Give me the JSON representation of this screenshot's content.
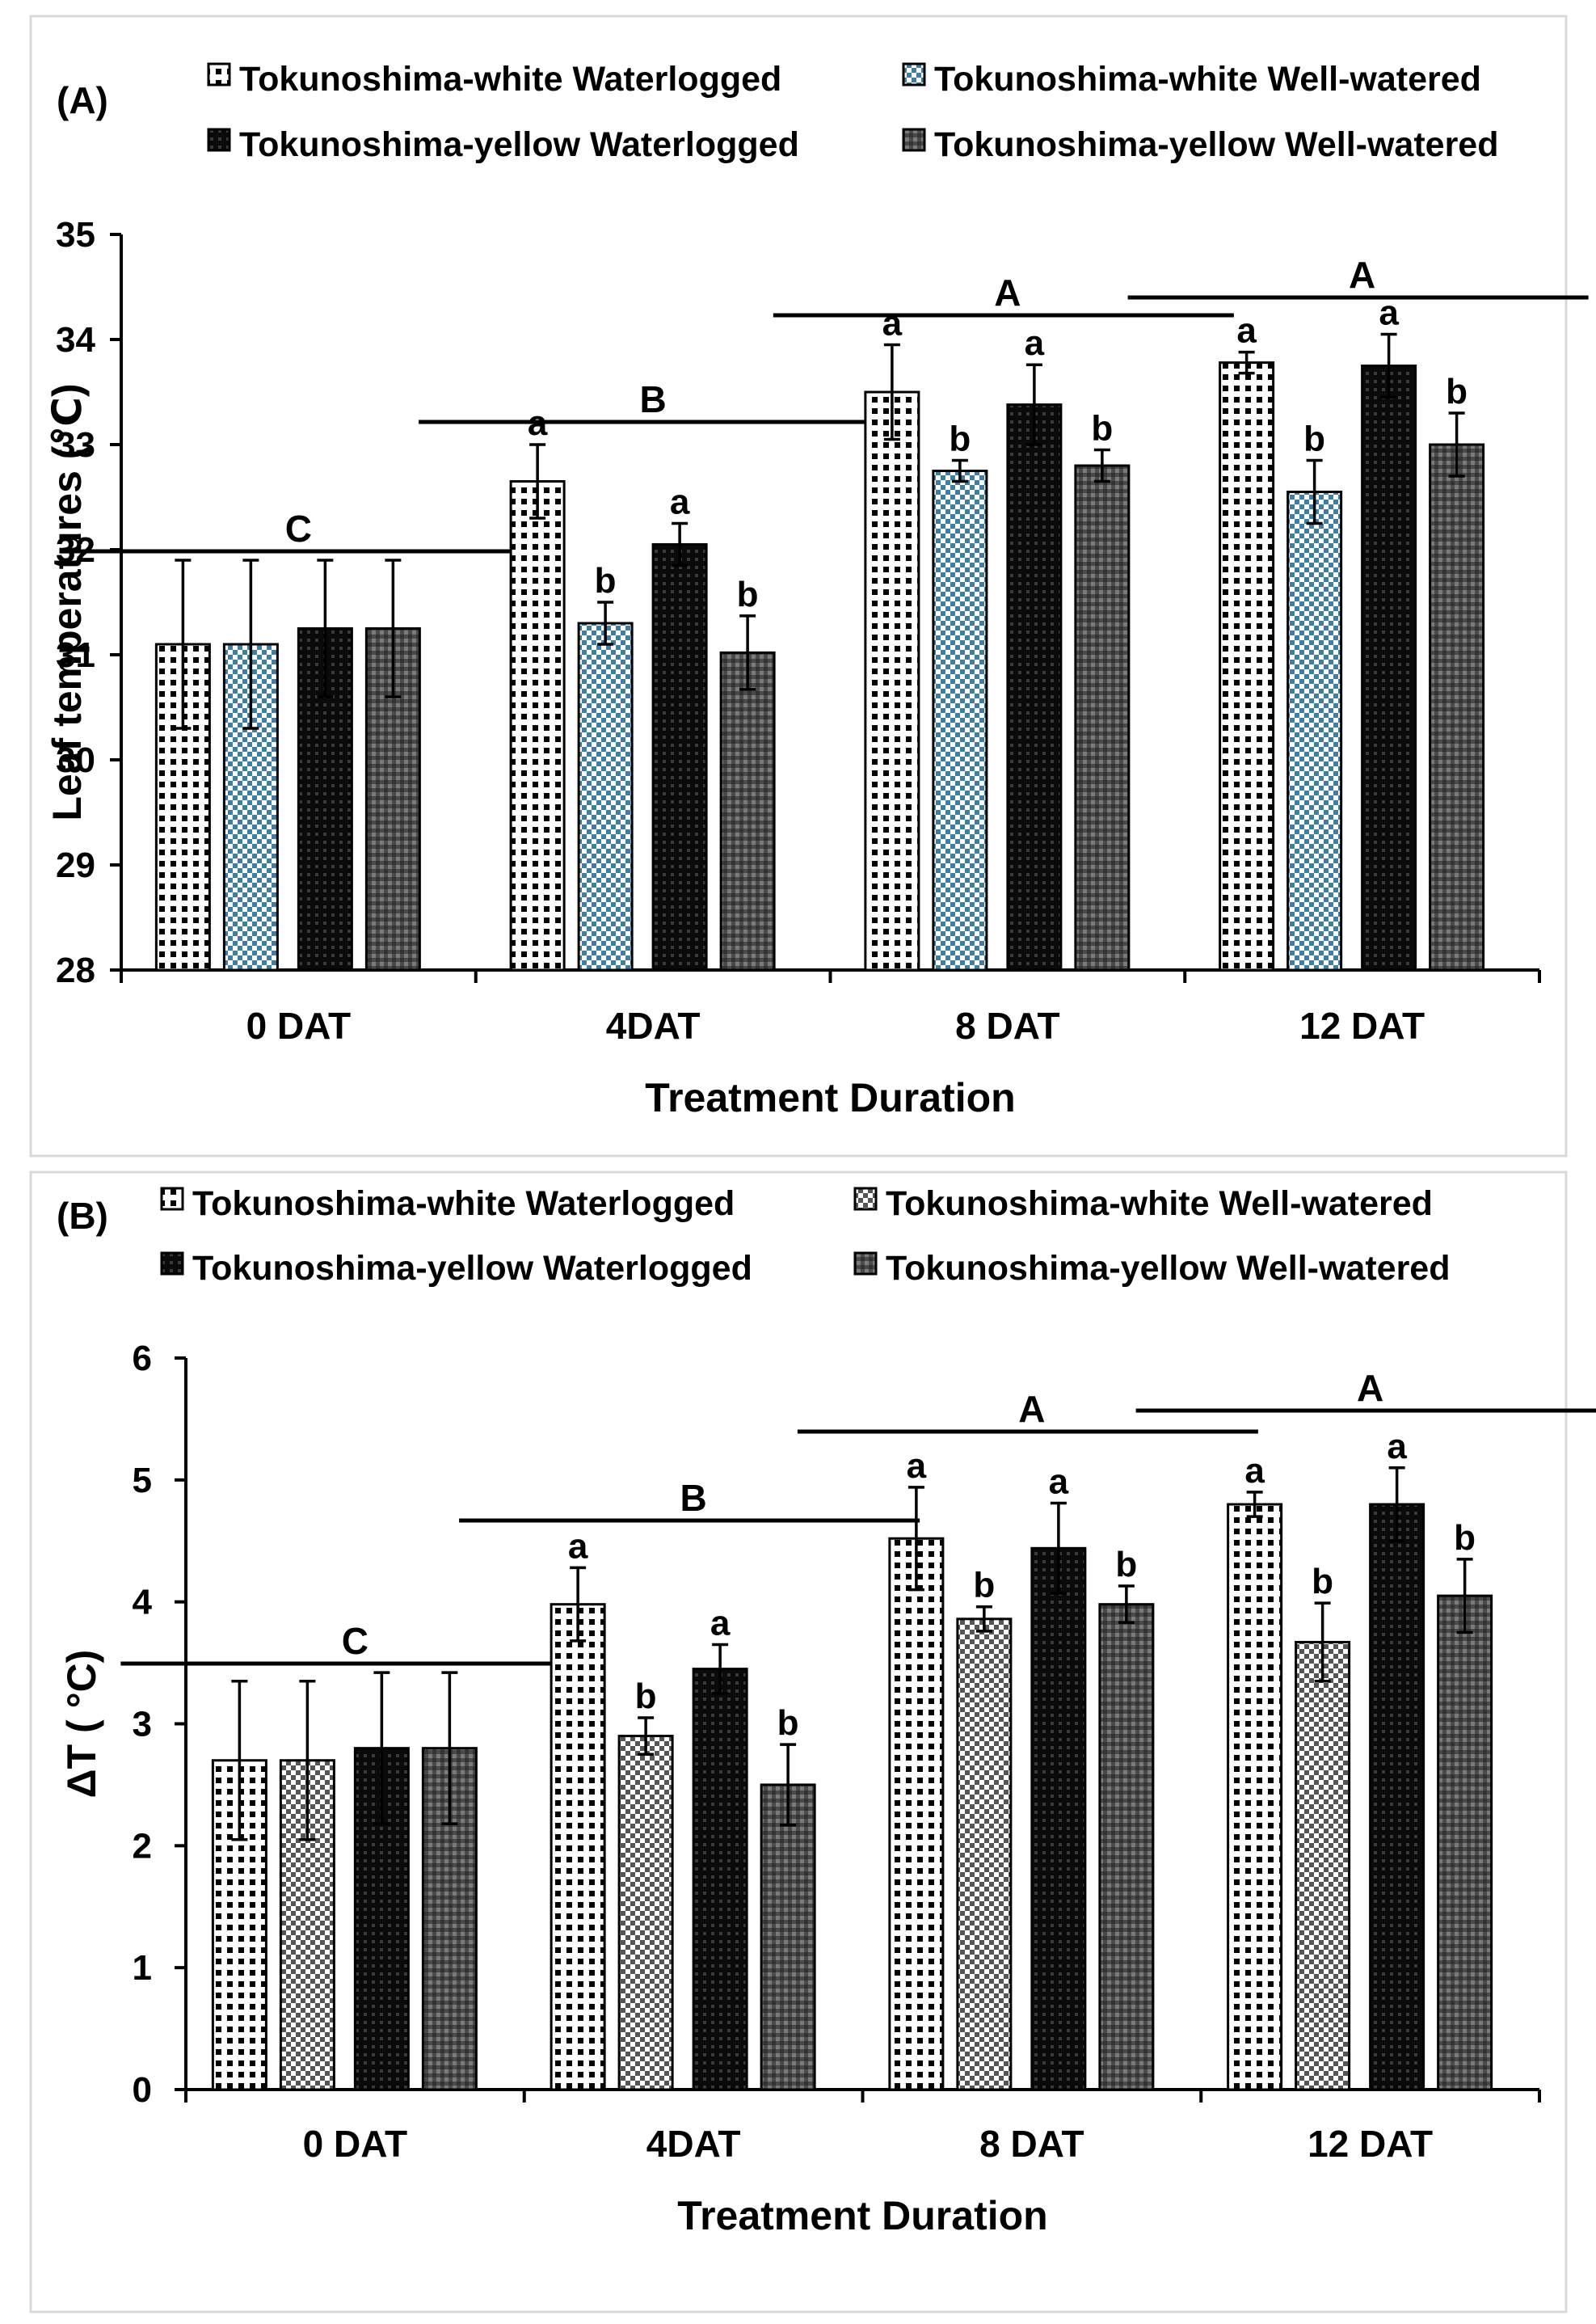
{
  "chart_data": [
    {
      "type": "bar",
      "panel_label": "(A)",
      "xlabel": "Treatment Duration",
      "ylabel": "Leaf temperatures (℃)",
      "ylim": [
        28,
        35
      ],
      "yticks": [
        28,
        29,
        30,
        31,
        32,
        33,
        34,
        35
      ],
      "categories": [
        "0 DAT",
        "4DAT",
        "8 DAT",
        "12 DAT"
      ],
      "series": [
        {
          "name": "Tokunoshima-white Waterlogged",
          "values": [
            31.1,
            32.65,
            33.5,
            33.78
          ],
          "errors": [
            0.8,
            0.35,
            0.45,
            0.1
          ],
          "letters": [
            "",
            "a",
            "a",
            "a"
          ]
        },
        {
          "name": "Tokunoshima-white Well-watered",
          "values": [
            31.1,
            31.3,
            32.75,
            32.55
          ],
          "errors": [
            0.8,
            0.2,
            0.1,
            0.3
          ],
          "letters": [
            "",
            "b",
            "b",
            "b"
          ]
        },
        {
          "name": "Tokunoshima-yellow  Waterlogged",
          "values": [
            31.25,
            32.05,
            33.38,
            33.75
          ],
          "errors": [
            0.65,
            0.2,
            0.38,
            0.3
          ],
          "letters": [
            "",
            "a",
            "a",
            "a"
          ]
        },
        {
          "name": "Tokunoshima-yellow  Well-watered",
          "values": [
            31.25,
            31.02,
            32.8,
            33.0
          ],
          "errors": [
            0.65,
            0.35,
            0.15,
            0.3
          ],
          "letters": [
            "",
            "b",
            "b",
            "b"
          ]
        }
      ],
      "group_letters": [
        "C",
        "B",
        "A",
        "A"
      ],
      "legend_position": "top"
    },
    {
      "type": "bar",
      "panel_label": "(B)",
      "xlabel": "Treatment Duration",
      "ylabel": "ΔT ( °C)",
      "ylim": [
        0,
        6
      ],
      "yticks": [
        0,
        1,
        2,
        3,
        4,
        5,
        6
      ],
      "categories": [
        "0 DAT",
        "4DAT",
        "8 DAT",
        "12 DAT"
      ],
      "series": [
        {
          "name": "Tokunoshima-white Waterlogged",
          "values": [
            2.7,
            3.98,
            4.52,
            4.8
          ],
          "errors": [
            0.65,
            0.3,
            0.42,
            0.1
          ],
          "letters": [
            "",
            "a",
            "a",
            "a"
          ]
        },
        {
          "name": "Tokunoshima-white Well-watered",
          "values": [
            2.7,
            2.9,
            3.86,
            3.67
          ],
          "errors": [
            0.65,
            0.15,
            0.1,
            0.32
          ],
          "letters": [
            "",
            "b",
            "b",
            "b"
          ]
        },
        {
          "name": "Tokunoshima-yellow  Waterlogged",
          "values": [
            2.8,
            3.45,
            4.44,
            4.8
          ],
          "errors": [
            0.62,
            0.2,
            0.37,
            0.3
          ],
          "letters": [
            "",
            "a",
            "a",
            "a"
          ]
        },
        {
          "name": "Tokunoshima-yellow  Well-watered",
          "values": [
            2.8,
            2.5,
            3.98,
            4.05
          ],
          "errors": [
            0.62,
            0.33,
            0.15,
            0.3
          ],
          "letters": [
            "",
            "b",
            "b",
            "b"
          ]
        }
      ],
      "group_letters": [
        "C",
        "B",
        "A",
        "A"
      ],
      "legend_position": "top"
    }
  ]
}
